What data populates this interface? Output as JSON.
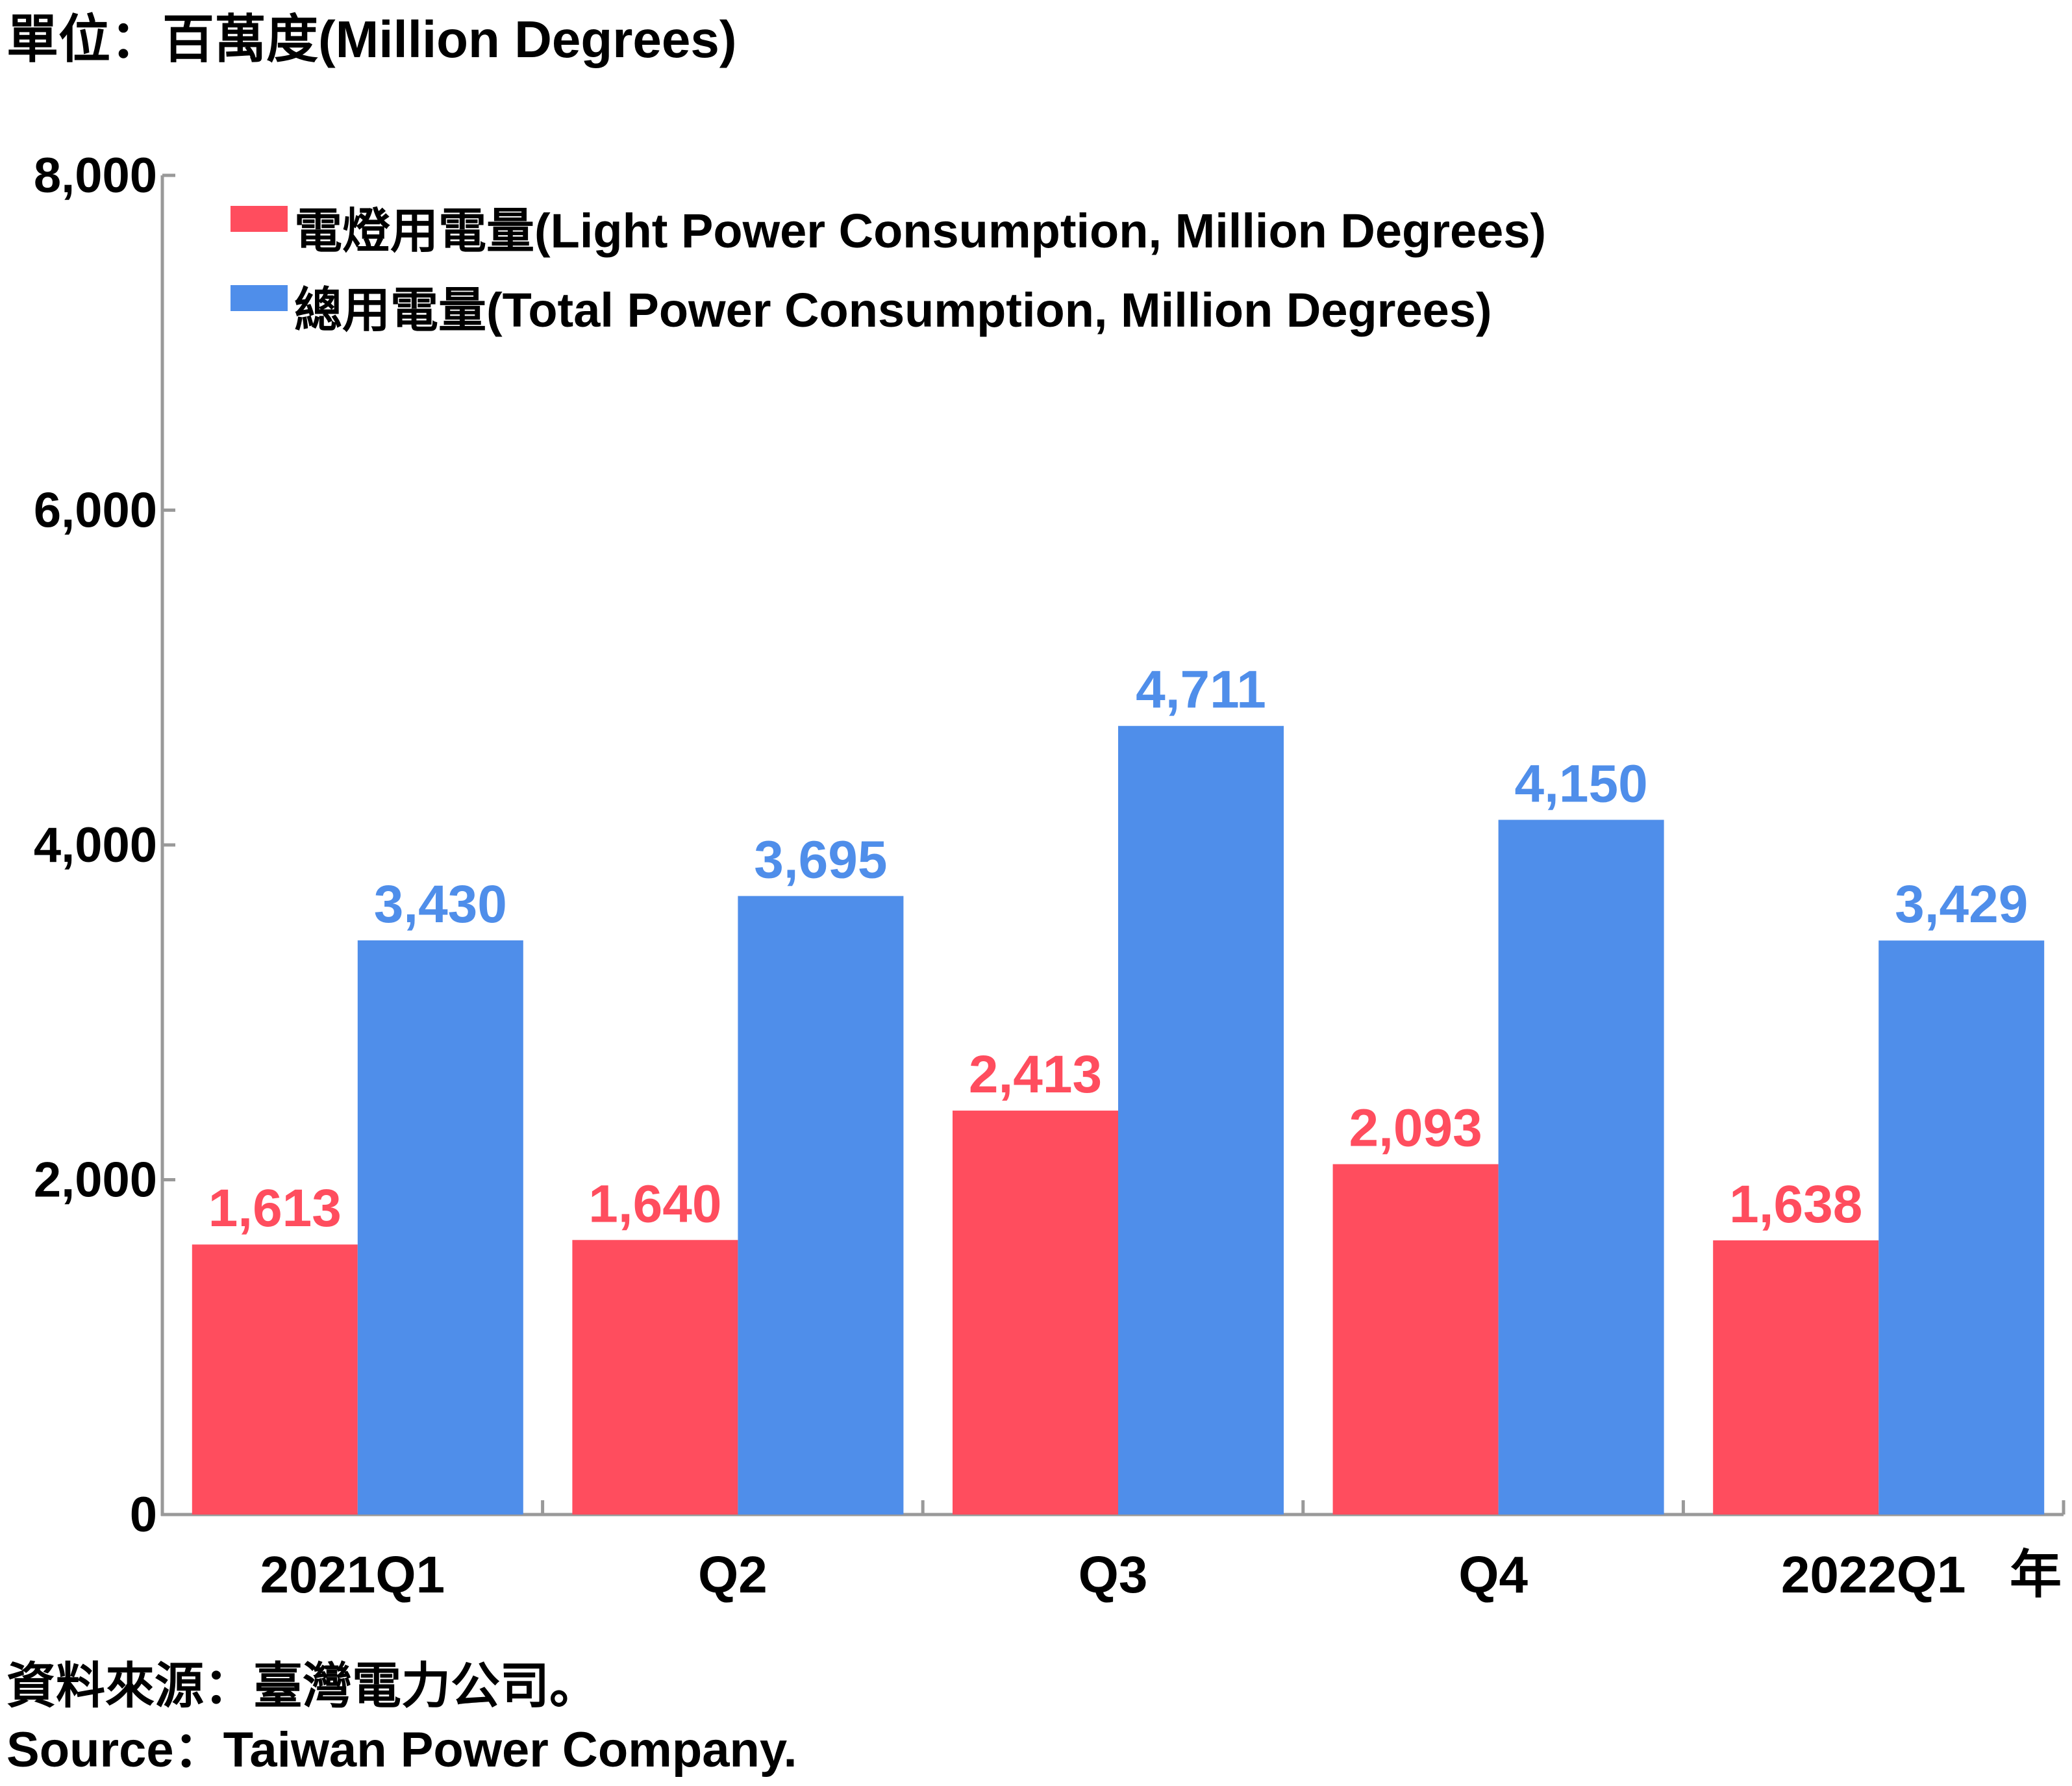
{
  "chart_data": {
    "type": "bar",
    "unit_label": "單位：百萬度(Million Degrees)",
    "categories": [
      "2021Q1",
      "Q2",
      "Q3",
      "Q4",
      "2022Q1"
    ],
    "x_axis_suffix": "年",
    "series": [
      {
        "name": "電燈用電量(Light Power Consumption, Million Degrees)",
        "values": [
          1613,
          1640,
          2413,
          2093,
          1638
        ],
        "labels": [
          "1,613",
          "1,640",
          "2,413",
          "2,093",
          "1,638"
        ],
        "color": "#FF4D5E"
      },
      {
        "name": "總用電量(Total Power Consumption, Million Degrees)",
        "values": [
          3430,
          3695,
          4711,
          4150,
          3429
        ],
        "labels": [
          "3,430",
          "3,695",
          "4,711",
          "4,150",
          "3,429"
        ],
        "color": "#4F8EEA"
      }
    ],
    "ylim": [
      0,
      8000
    ],
    "yticks": [
      0,
      2000,
      4000,
      6000,
      8000
    ],
    "ytick_labels": [
      "0",
      "2,000",
      "4,000",
      "6,000",
      "8,000"
    ],
    "grid": false,
    "legend_position": "top-left"
  },
  "source": {
    "zh": "資料來源：臺灣電力公司。",
    "en": "Source：Taiwan Power Company."
  }
}
